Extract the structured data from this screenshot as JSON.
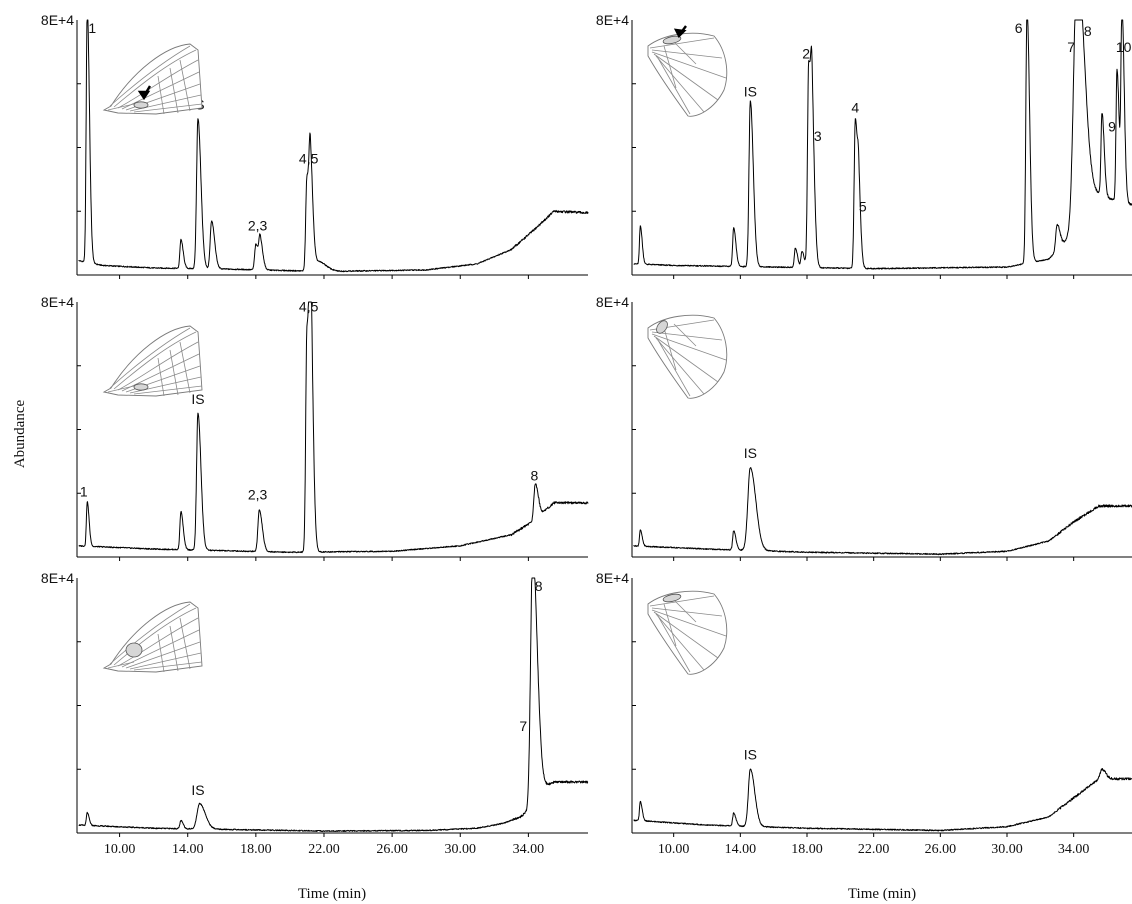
{
  "figure": {
    "ylabel": "Abundance",
    "xlabel": "Time (min)",
    "colors": {
      "trace": "#000000",
      "axis": "#000000",
      "wing_outline": "#7a7a7a",
      "wing_spot": "#d6d6d6"
    }
  },
  "chart_data": [
    {
      "type": "line",
      "panel": "top-left",
      "wing": "forewing",
      "spot": "hindmargin-spot",
      "arrow": true,
      "ylim_label": "8E+4",
      "xlim": [
        7.5,
        37.5
      ],
      "ylim": [
        0,
        80000
      ],
      "xticks": [
        10,
        14,
        18,
        22,
        26,
        30,
        34
      ],
      "xtick_labels": [],
      "baseline": [
        [
          7.6,
          4500
        ],
        [
          9.0,
          3000
        ],
        [
          12.0,
          2200
        ],
        [
          16.0,
          1900
        ],
        [
          22.0,
          1100
        ],
        [
          28.0,
          1600
        ],
        [
          31.0,
          3500
        ],
        [
          33.0,
          8000
        ],
        [
          34.3,
          14000
        ],
        [
          35.5,
          20000
        ],
        [
          37.5,
          19500
        ]
      ],
      "peaks": [
        {
          "x": 8.1,
          "y": 80000,
          "w": 0.06
        },
        {
          "x": 13.6,
          "y": 9000,
          "w": 0.06
        },
        {
          "x": 14.6,
          "y": 47000,
          "w": 0.08
        },
        {
          "x": 15.4,
          "y": 15000,
          "w": 0.08
        },
        {
          "x": 18.0,
          "y": 8000,
          "w": 0.07
        },
        {
          "x": 18.25,
          "y": 9000,
          "w": 0.07
        },
        {
          "x": 21.0,
          "y": 29500,
          "w": 0.07
        },
        {
          "x": 21.2,
          "y": 29500,
          "w": 0.07
        },
        {
          "x": 21.7,
          "y": 3000,
          "w": 0.2
        }
      ],
      "labels": [
        {
          "text": "1",
          "x": 8.4,
          "y": 76000
        },
        {
          "text": "IS",
          "x": 14.6,
          "y": 52000
        },
        {
          "text": "2,3",
          "x": 18.1,
          "y": 14000
        },
        {
          "text": "4,5",
          "x": 21.1,
          "y": 35000
        }
      ]
    },
    {
      "type": "line",
      "panel": "top-right",
      "wing": "hindwing",
      "spot": "costal-spot",
      "arrow": true,
      "ylim_label": "8E+4",
      "xlim": [
        7.5,
        37.5
      ],
      "ylim": [
        0,
        80000
      ],
      "xticks": [
        10,
        14,
        18,
        22,
        26,
        30,
        34
      ],
      "xtick_labels": [],
      "baseline": [
        [
          7.6,
          3500
        ],
        [
          10.0,
          3000
        ],
        [
          16.0,
          2500
        ],
        [
          22.0,
          2000
        ],
        [
          30.0,
          2500
        ],
        [
          32.5,
          5000
        ],
        [
          33.8,
          12000
        ],
        [
          34.2,
          18000
        ],
        [
          35.5,
          25000
        ],
        [
          37.5,
          22000
        ]
      ],
      "peaks": [
        {
          "x": 8.0,
          "y": 12000,
          "w": 0.05
        },
        {
          "x": 13.6,
          "y": 12000,
          "w": 0.06
        },
        {
          "x": 14.6,
          "y": 52000,
          "w": 0.08
        },
        {
          "x": 17.3,
          "y": 6000,
          "w": 0.06
        },
        {
          "x": 17.7,
          "y": 5000,
          "w": 0.06
        },
        {
          "x": 18.1,
          "y": 64000,
          "w": 0.07
        },
        {
          "x": 18.3,
          "y": 38000,
          "w": 0.07
        },
        {
          "x": 20.9,
          "y": 47000,
          "w": 0.07
        },
        {
          "x": 21.1,
          "y": 16000,
          "w": 0.06
        },
        {
          "x": 31.2,
          "y": 80000,
          "w": 0.07
        },
        {
          "x": 33.0,
          "y": 8000,
          "w": 0.08
        },
        {
          "x": 34.2,
          "y": 80000,
          "w": 0.2
        },
        {
          "x": 35.7,
          "y": 26000,
          "w": 0.06
        },
        {
          "x": 36.6,
          "y": 41000,
          "w": 0.06
        },
        {
          "x": 36.9,
          "y": 60000,
          "w": 0.06
        }
      ],
      "labels": [
        {
          "text": "IS",
          "x": 14.6,
          "y": 56000
        },
        {
          "text": "2",
          "x": 17.95,
          "y": 68000
        },
        {
          "text": "3",
          "x": 18.65,
          "y": 42000
        },
        {
          "text": "4",
          "x": 20.9,
          "y": 51000
        },
        {
          "text": "5",
          "x": 21.35,
          "y": 20000
        },
        {
          "text": "6",
          "x": 30.7,
          "y": 76000
        },
        {
          "text": "7",
          "x": 33.85,
          "y": 70000
        },
        {
          "text": "8",
          "x": 34.85,
          "y": 75000
        },
        {
          "text": "9",
          "x": 36.3,
          "y": 45000
        },
        {
          "text": "10",
          "x": 37.0,
          "y": 70000
        }
      ]
    },
    {
      "type": "line",
      "panel": "middle-left",
      "wing": "forewing",
      "spot": "hindmargin-spot",
      "arrow": false,
      "ylim_label": "8E+4",
      "xlim": [
        7.5,
        37.5
      ],
      "ylim": [
        0,
        80000
      ],
      "xticks": [
        10,
        14,
        18,
        22,
        26,
        30,
        34
      ],
      "xtick_labels": [],
      "baseline": [
        [
          7.6,
          3500
        ],
        [
          12.0,
          2500
        ],
        [
          20.0,
          1500
        ],
        [
          26.0,
          1800
        ],
        [
          30.0,
          3500
        ],
        [
          33.0,
          7000
        ],
        [
          34.2,
          11000
        ],
        [
          35.5,
          17000
        ],
        [
          37.5,
          17000
        ]
      ],
      "peaks": [
        {
          "x": 8.1,
          "y": 14000,
          "w": 0.05
        },
        {
          "x": 13.6,
          "y": 12000,
          "w": 0.06
        },
        {
          "x": 14.6,
          "y": 43000,
          "w": 0.08
        },
        {
          "x": 18.2,
          "y": 13000,
          "w": 0.08
        },
        {
          "x": 21.0,
          "y": 70000,
          "w": 0.07
        },
        {
          "x": 21.2,
          "y": 71000,
          "w": 0.07
        },
        {
          "x": 34.4,
          "y": 11000,
          "w": 0.08
        }
      ],
      "labels": [
        {
          "text": "1",
          "x": 7.9,
          "y": 19000
        },
        {
          "text": "IS",
          "x": 14.6,
          "y": 48000
        },
        {
          "text": "2,3",
          "x": 18.1,
          "y": 18000
        },
        {
          "text": "4,5",
          "x": 21.1,
          "y": 77000
        },
        {
          "text": "8",
          "x": 34.35,
          "y": 24000
        }
      ]
    },
    {
      "type": "line",
      "panel": "middle-right",
      "wing": "hindwing",
      "spot": "basal-spot",
      "arrow": false,
      "ylim_label": "8E+4",
      "xlim": [
        7.5,
        37.5
      ],
      "ylim": [
        0,
        80000
      ],
      "xticks": [
        10,
        14,
        18,
        22,
        26,
        30,
        34
      ],
      "xtick_labels": [],
      "baseline": [
        [
          7.6,
          3500
        ],
        [
          12.0,
          2500
        ],
        [
          18.0,
          1500
        ],
        [
          26.0,
          900
        ],
        [
          30.0,
          1800
        ],
        [
          32.5,
          5000
        ],
        [
          34.0,
          11000
        ],
        [
          35.5,
          16000
        ],
        [
          37.5,
          16000
        ]
      ],
      "peaks": [
        {
          "x": 8.0,
          "y": 5000,
          "w": 0.05
        },
        {
          "x": 13.6,
          "y": 6000,
          "w": 0.06
        },
        {
          "x": 14.6,
          "y": 26000,
          "w": 0.15
        }
      ],
      "labels": [
        {
          "text": "IS",
          "x": 14.6,
          "y": 31000
        }
      ]
    },
    {
      "type": "line",
      "panel": "bottom-left",
      "wing": "forewing",
      "spot": "central-spot",
      "arrow": false,
      "ylim_label": "8E+4",
      "xlim": [
        7.5,
        37.5
      ],
      "ylim": [
        0,
        80000
      ],
      "xticks": [
        10,
        14,
        18,
        22,
        26,
        30,
        34
      ],
      "xtick_labels": [
        "10.00",
        "14.00",
        "18.00",
        "22.00",
        "26.00",
        "30.00",
        "34.00"
      ],
      "baseline": [
        [
          7.6,
          2500
        ],
        [
          12.0,
          1500
        ],
        [
          22.0,
          600
        ],
        [
          28.0,
          800
        ],
        [
          31.0,
          1500
        ],
        [
          32.5,
          3000
        ],
        [
          33.5,
          5000
        ],
        [
          34.3,
          8000
        ],
        [
          34.7,
          14000
        ],
        [
          35.5,
          16000
        ],
        [
          37.5,
          16000
        ]
      ],
      "peaks": [
        {
          "x": 8.1,
          "y": 4000,
          "w": 0.05
        },
        {
          "x": 13.6,
          "y": 2500,
          "w": 0.06
        },
        {
          "x": 14.7,
          "y": 8000,
          "w": 0.15
        },
        {
          "x": 34.25,
          "y": 80000,
          "w": 0.12
        }
      ],
      "labels": [
        {
          "text": "IS",
          "x": 14.6,
          "y": 12000
        },
        {
          "text": "8",
          "x": 34.6,
          "y": 76000
        },
        {
          "text": "7",
          "x": 33.7,
          "y": 32000
        }
      ]
    },
    {
      "type": "line",
      "panel": "bottom-right",
      "wing": "hindwing",
      "spot": "costal-spot",
      "arrow": false,
      "ylim_label": "8E+4",
      "xlim": [
        7.5,
        37.5
      ],
      "ylim": [
        0,
        80000
      ],
      "xticks": [
        10,
        14,
        18,
        22,
        26,
        30,
        34
      ],
      "xtick_labels": [
        "10.00",
        "14.00",
        "18.00",
        "22.00",
        "26.00",
        "30.00",
        "34.00"
      ],
      "baseline": [
        [
          7.6,
          4000
        ],
        [
          12.0,
          2500
        ],
        [
          18.0,
          1500
        ],
        [
          26.0,
          800
        ],
        [
          30.0,
          2000
        ],
        [
          32.5,
          5000
        ],
        [
          34.0,
          11000
        ],
        [
          35.5,
          17000
        ],
        [
          37.5,
          17000
        ]
      ],
      "peaks": [
        {
          "x": 8.0,
          "y": 6000,
          "w": 0.05
        },
        {
          "x": 13.6,
          "y": 4000,
          "w": 0.06
        },
        {
          "x": 14.6,
          "y": 18000,
          "w": 0.12
        },
        {
          "x": 35.7,
          "y": 3000,
          "w": 0.1
        }
      ],
      "labels": [
        {
          "text": "IS",
          "x": 14.6,
          "y": 23000
        }
      ]
    }
  ]
}
